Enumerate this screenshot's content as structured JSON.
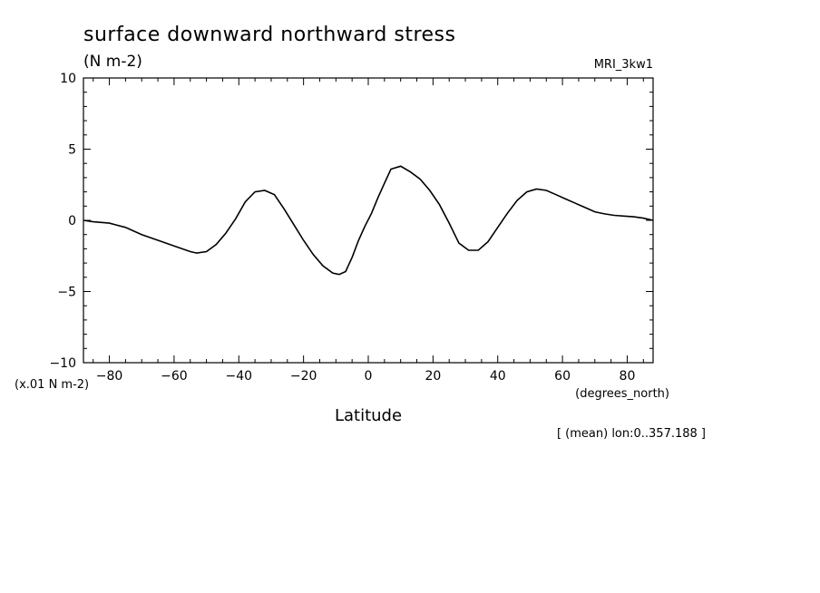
{
  "chart_data": {
    "type": "line",
    "title": "surface downward northward stress",
    "units": "(N m-2)",
    "model": "MRI_3kw1",
    "scale_label": "(x.01 N m-2)",
    "xlabel": "Latitude",
    "x_units_label": "(degrees_north)",
    "note": "[ (mean) lon:0..357.188 ]",
    "xlim": [
      -88,
      88
    ],
    "ylim": [
      -10,
      10
    ],
    "x_ticks": [
      -80,
      -60,
      -40,
      -20,
      0,
      20,
      40,
      60,
      80
    ],
    "x_tick_labels": [
      "−80",
      "−60",
      "−40",
      "−20",
      "0",
      "20",
      "40",
      "60",
      "80"
    ],
    "y_ticks": [
      -10,
      -5,
      0,
      5,
      10
    ],
    "y_tick_labels": [
      "−10",
      "−5",
      "0",
      "5",
      "10"
    ],
    "grid": false,
    "series": [
      {
        "x": [
          -88,
          -85,
          -80,
          -75,
          -70,
          -65,
          -60,
          -55,
          -53,
          -50,
          -47,
          -44,
          -41,
          -38,
          -35,
          -32,
          -29,
          -26,
          -23,
          -20,
          -17,
          -14,
          -11,
          -9,
          -7,
          -5,
          -3,
          -1,
          1,
          3,
          5,
          7,
          10,
          13,
          16,
          19,
          22,
          25,
          28,
          31,
          34,
          37,
          40,
          43,
          46,
          49,
          52,
          55,
          58,
          61,
          64,
          67,
          70,
          73,
          76,
          79,
          82,
          85,
          88
        ],
        "y": [
          0.0,
          -0.1,
          -0.2,
          -0.5,
          -1.0,
          -1.4,
          -1.8,
          -2.2,
          -2.3,
          -2.2,
          -1.7,
          -0.9,
          0.1,
          1.3,
          2.0,
          2.1,
          1.8,
          0.8,
          -0.3,
          -1.4,
          -2.4,
          -3.2,
          -3.7,
          -3.8,
          -3.6,
          -2.6,
          -1.4,
          -0.4,
          0.5,
          1.6,
          2.6,
          3.6,
          3.8,
          3.4,
          2.9,
          2.1,
          1.1,
          -0.2,
          -1.6,
          -2.1,
          -2.1,
          -1.5,
          -0.5,
          0.5,
          1.4,
          2.0,
          2.2,
          2.1,
          1.8,
          1.5,
          1.2,
          0.9,
          0.6,
          0.45,
          0.35,
          0.3,
          0.25,
          0.15,
          0.0
        ]
      }
    ]
  }
}
